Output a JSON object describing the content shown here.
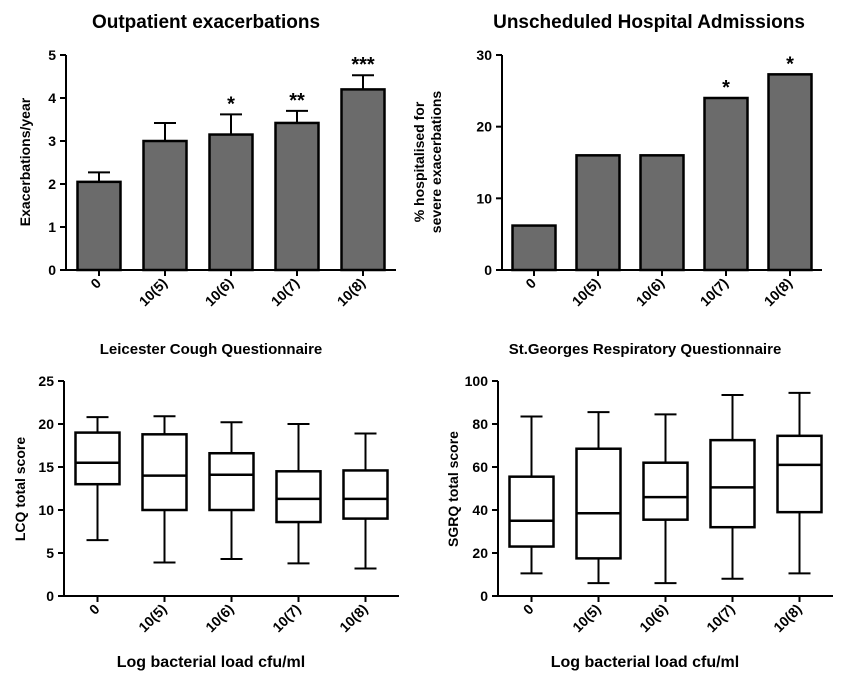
{
  "figure": {
    "shared_xlabel": "Log bacterial load cfu/ml",
    "colors": {
      "bar_fill": "#6b6b6b",
      "box_fill": "#ffffff",
      "stroke": "#000000"
    }
  },
  "chart_data": [
    {
      "id": "p1",
      "type": "bar",
      "title": "Outpatient exacerbations",
      "ylabel": "Exacerbations/year",
      "xlabel": "",
      "categories": [
        "0",
        "10(5)",
        "10(6)",
        "10(7)",
        "10(8)"
      ],
      "values": [
        2.05,
        3.0,
        3.15,
        3.42,
        4.2
      ],
      "error_upper": [
        2.27,
        3.42,
        3.62,
        3.7,
        4.53
      ],
      "significance": [
        "",
        "",
        "*",
        "**",
        "***"
      ],
      "ylim": [
        0,
        5
      ],
      "yticks": [
        0,
        1,
        2,
        3,
        4,
        5
      ]
    },
    {
      "id": "p2",
      "type": "bar",
      "title": "Unscheduled Hospital Admissions",
      "ylabel": [
        "% hospitalised for",
        "severe exacerbations"
      ],
      "xlabel": "",
      "categories": [
        "0",
        "10(5)",
        "10(6)",
        "10(7)",
        "10(8)"
      ],
      "values": [
        6.2,
        16.0,
        16.0,
        24.0,
        27.3
      ],
      "significance": [
        "",
        "",
        "",
        "*",
        "*"
      ],
      "ylim": [
        0,
        30
      ],
      "yticks": [
        0,
        10,
        20,
        30
      ]
    },
    {
      "id": "p3",
      "type": "box",
      "title": "Leicester Cough Questionnaire",
      "ylabel": "LCQ total score",
      "xlabel": "Log bacterial load cfu/ml",
      "categories": [
        "0",
        "10(5)",
        "10(6)",
        "10(7)",
        "10(8)"
      ],
      "boxes": [
        {
          "min": 6.5,
          "q1": 13.0,
          "median": 15.5,
          "q3": 19.0,
          "max": 20.8
        },
        {
          "min": 3.9,
          "q1": 10.0,
          "median": 14.0,
          "q3": 18.8,
          "max": 20.9
        },
        {
          "min": 4.3,
          "q1": 10.0,
          "median": 14.1,
          "q3": 16.6,
          "max": 20.2
        },
        {
          "min": 3.8,
          "q1": 8.6,
          "median": 11.3,
          "q3": 14.5,
          "max": 20.0
        },
        {
          "min": 3.2,
          "q1": 9.0,
          "median": 11.3,
          "q3": 14.6,
          "max": 18.9
        }
      ],
      "ylim": [
        0,
        25
      ],
      "yticks": [
        0,
        5,
        10,
        15,
        20,
        25
      ]
    },
    {
      "id": "p4",
      "type": "box",
      "title": "St.Georges Respiratory Questionnaire",
      "ylabel": "SGRQ total score",
      "xlabel": "Log bacterial load cfu/ml",
      "categories": [
        "0",
        "10(5)",
        "10(6)",
        "10(7)",
        "10(8)"
      ],
      "boxes": [
        {
          "min": 10.5,
          "q1": 23.0,
          "median": 35.0,
          "q3": 55.5,
          "max": 83.5
        },
        {
          "min": 6.0,
          "q1": 17.5,
          "median": 38.5,
          "q3": 68.5,
          "max": 85.5
        },
        {
          "min": 6.0,
          "q1": 35.5,
          "median": 46.0,
          "q3": 62.0,
          "max": 84.5
        },
        {
          "min": 8.0,
          "q1": 32.0,
          "median": 50.5,
          "q3": 72.5,
          "max": 93.5
        },
        {
          "min": 10.5,
          "q1": 39.0,
          "median": 61.0,
          "q3": 74.5,
          "max": 94.5
        }
      ],
      "ylim": [
        0,
        100
      ],
      "yticks": [
        0,
        20,
        40,
        60,
        80,
        100
      ]
    }
  ]
}
